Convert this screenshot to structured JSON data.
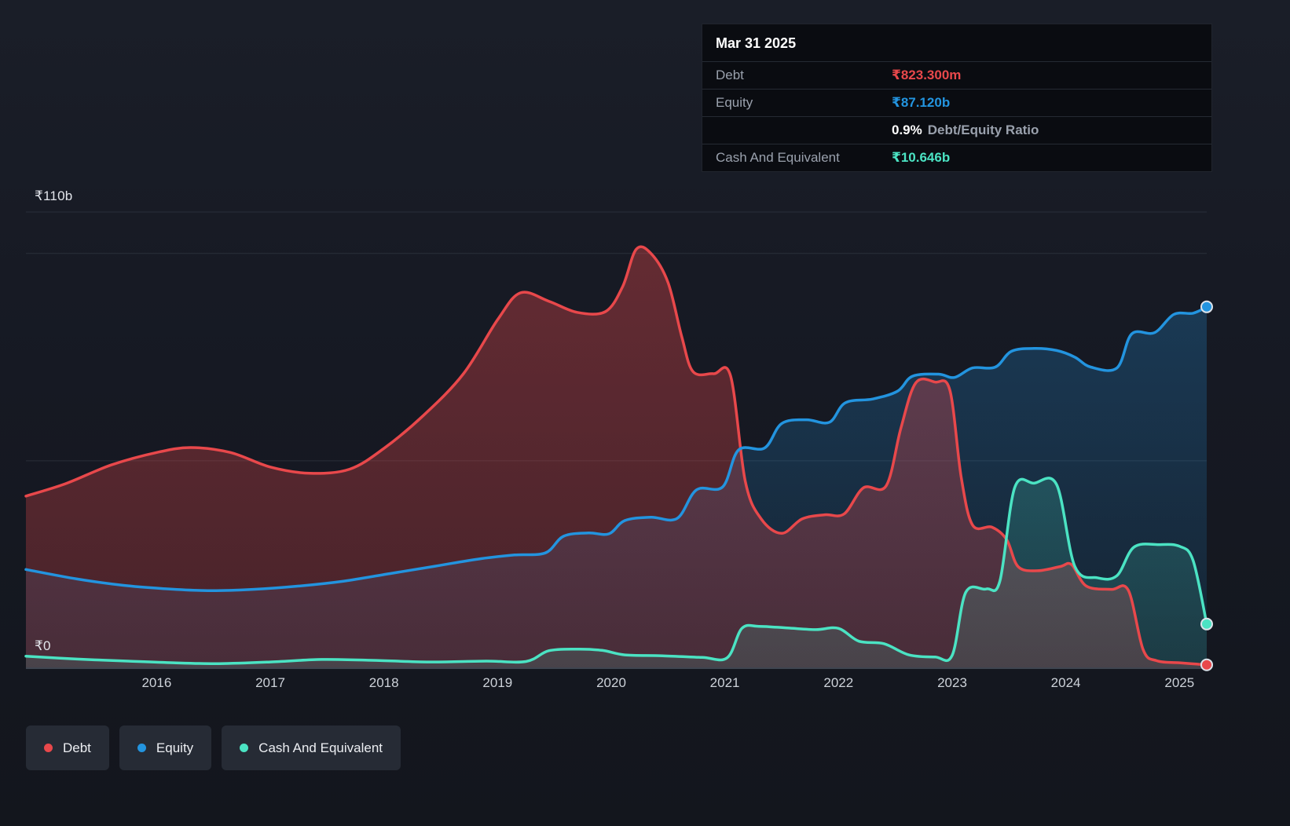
{
  "colors": {
    "debt": "#e8484b",
    "equity": "#2394df",
    "cash": "#4be3c3",
    "background": "#161923",
    "gridline": "#2a2f3a",
    "axis": "#3f4550",
    "tooltip_bg": "#0a0c11",
    "legend_bg": "#262b35"
  },
  "tooltip": {
    "date": "Mar 31 2025",
    "debt_label": "Debt",
    "debt_value": "₹823.300m",
    "equity_label": "Equity",
    "equity_value": "₹87.120b",
    "ratio_value": "0.9%",
    "ratio_label": "Debt/Equity Ratio",
    "cash_label": "Cash And Equivalent",
    "cash_value": "₹10.646b"
  },
  "legend": {
    "items": [
      {
        "label": "Debt"
      },
      {
        "label": "Equity"
      },
      {
        "label": "Cash And Equivalent"
      }
    ]
  },
  "chart_data": {
    "type": "area",
    "unit": "INR billions",
    "x_range": [
      2014.85,
      2025.24
    ],
    "y_range": [
      0,
      110
    ],
    "x_ticks": [
      2016,
      2017,
      2018,
      2019,
      2020,
      2021,
      2022,
      2023,
      2024,
      2025
    ],
    "gridline_values": [
      110,
      100,
      50
    ],
    "y_axis_labels": [
      {
        "value": 110,
        "label": "₹110b"
      },
      {
        "value": 0,
        "label": "₹0"
      }
    ],
    "legend_position": "bottom-left",
    "series": [
      {
        "name": "Debt",
        "color": "#e8484b",
        "final_value_label": "₹823.300m",
        "points": [
          [
            2014.85,
            41.5
          ],
          [
            2015.2,
            44.5
          ],
          [
            2015.6,
            49
          ],
          [
            2016.0,
            52
          ],
          [
            2016.3,
            53.2
          ],
          [
            2016.65,
            52
          ],
          [
            2017.0,
            48.5
          ],
          [
            2017.35,
            47
          ],
          [
            2017.7,
            48
          ],
          [
            2018.0,
            53
          ],
          [
            2018.35,
            61
          ],
          [
            2018.7,
            71
          ],
          [
            2019.0,
            84
          ],
          [
            2019.2,
            90.5
          ],
          [
            2019.45,
            88.5
          ],
          [
            2019.7,
            85.8
          ],
          [
            2019.95,
            86
          ],
          [
            2020.1,
            92
          ],
          [
            2020.22,
            101
          ],
          [
            2020.35,
            100
          ],
          [
            2020.5,
            93
          ],
          [
            2020.62,
            80
          ],
          [
            2020.72,
            71.5
          ],
          [
            2020.9,
            71
          ],
          [
            2021.05,
            70.5
          ],
          [
            2021.18,
            45
          ],
          [
            2021.32,
            36
          ],
          [
            2021.5,
            32.5
          ],
          [
            2021.68,
            36
          ],
          [
            2021.88,
            37
          ],
          [
            2022.05,
            37.2
          ],
          [
            2022.22,
            43.5
          ],
          [
            2022.42,
            44
          ],
          [
            2022.55,
            58
          ],
          [
            2022.68,
            68.8
          ],
          [
            2022.85,
            69
          ],
          [
            2022.98,
            67
          ],
          [
            2023.08,
            46
          ],
          [
            2023.18,
            34.5
          ],
          [
            2023.35,
            34
          ],
          [
            2023.48,
            31
          ],
          [
            2023.58,
            24.5
          ],
          [
            2023.75,
            23.5
          ],
          [
            2023.95,
            24.5
          ],
          [
            2024.05,
            25
          ],
          [
            2024.18,
            19.8
          ],
          [
            2024.4,
            19
          ],
          [
            2024.55,
            18.8
          ],
          [
            2024.68,
            4.5
          ],
          [
            2024.8,
            1.8
          ],
          [
            2025.0,
            1.3
          ],
          [
            2025.24,
            0.82
          ]
        ]
      },
      {
        "name": "Equity",
        "color": "#2394df",
        "final_value_label": "₹87.120b",
        "points": [
          [
            2014.85,
            23.8
          ],
          [
            2015.3,
            21.5
          ],
          [
            2015.7,
            20
          ],
          [
            2016.05,
            19.2
          ],
          [
            2016.45,
            18.7
          ],
          [
            2016.85,
            19
          ],
          [
            2017.25,
            19.8
          ],
          [
            2017.65,
            21
          ],
          [
            2018.05,
            22.8
          ],
          [
            2018.45,
            24.6
          ],
          [
            2018.85,
            26.4
          ],
          [
            2019.15,
            27.3
          ],
          [
            2019.42,
            27.8
          ],
          [
            2019.58,
            31.8
          ],
          [
            2019.8,
            32.6
          ],
          [
            2019.98,
            32.4
          ],
          [
            2020.12,
            35.6
          ],
          [
            2020.35,
            36.4
          ],
          [
            2020.58,
            36.1
          ],
          [
            2020.75,
            43
          ],
          [
            2020.98,
            43.7
          ],
          [
            2021.12,
            52.6
          ],
          [
            2021.35,
            53.1
          ],
          [
            2021.5,
            59
          ],
          [
            2021.72,
            59.9
          ],
          [
            2021.92,
            59.3
          ],
          [
            2022.06,
            64
          ],
          [
            2022.3,
            64.9
          ],
          [
            2022.52,
            66.8
          ],
          [
            2022.65,
            70.4
          ],
          [
            2022.88,
            70.9
          ],
          [
            2023.02,
            70.1
          ],
          [
            2023.18,
            72.4
          ],
          [
            2023.38,
            72.6
          ],
          [
            2023.52,
            76.4
          ],
          [
            2023.72,
            77.1
          ],
          [
            2023.92,
            76.6
          ],
          [
            2024.08,
            75
          ],
          [
            2024.22,
            72.6
          ],
          [
            2024.45,
            72.4
          ],
          [
            2024.58,
            80.6
          ],
          [
            2024.78,
            80.9
          ],
          [
            2024.95,
            85.3
          ],
          [
            2025.12,
            85.6
          ],
          [
            2025.24,
            87.12
          ]
        ]
      },
      {
        "name": "Cash And Equivalent",
        "color": "#4be3c3",
        "final_value_label": "₹10.646b",
        "points": [
          [
            2014.85,
            2.9
          ],
          [
            2015.3,
            2.2
          ],
          [
            2015.75,
            1.7
          ],
          [
            2016.15,
            1.3
          ],
          [
            2016.55,
            1.1
          ],
          [
            2017.0,
            1.5
          ],
          [
            2017.45,
            2.1
          ],
          [
            2017.9,
            1.9
          ],
          [
            2018.4,
            1.5
          ],
          [
            2018.9,
            1.7
          ],
          [
            2019.25,
            1.6
          ],
          [
            2019.45,
            4.2
          ],
          [
            2019.7,
            4.6
          ],
          [
            2019.92,
            4.3
          ],
          [
            2020.12,
            3.2
          ],
          [
            2020.45,
            3.0
          ],
          [
            2020.8,
            2.6
          ],
          [
            2021.02,
            2.5
          ],
          [
            2021.15,
            9.6
          ],
          [
            2021.3,
            10.1
          ],
          [
            2021.55,
            9.7
          ],
          [
            2021.8,
            9.3
          ],
          [
            2022.0,
            9.6
          ],
          [
            2022.18,
            6.5
          ],
          [
            2022.4,
            5.9
          ],
          [
            2022.62,
            3.2
          ],
          [
            2022.85,
            2.7
          ],
          [
            2023.0,
            3.1
          ],
          [
            2023.12,
            18.3
          ],
          [
            2023.3,
            19.1
          ],
          [
            2023.42,
            21
          ],
          [
            2023.55,
            43.5
          ],
          [
            2023.72,
            44.6
          ],
          [
            2023.92,
            44.2
          ],
          [
            2024.08,
            24.5
          ],
          [
            2024.28,
            21.8
          ],
          [
            2024.45,
            22.3
          ],
          [
            2024.6,
            29.2
          ],
          [
            2024.82,
            29.8
          ],
          [
            2025.0,
            29.4
          ],
          [
            2025.12,
            26
          ],
          [
            2025.24,
            10.646
          ]
        ]
      }
    ]
  }
}
